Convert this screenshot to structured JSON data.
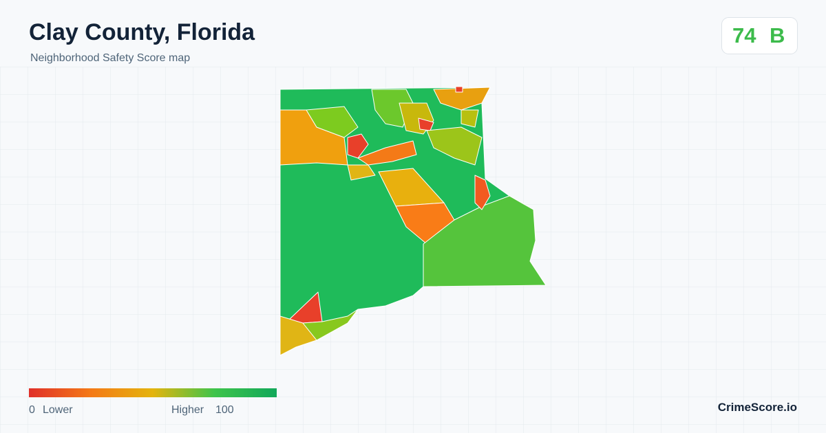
{
  "header": {
    "title": "Clay County, Florida",
    "subtitle": "Neighborhood Safety Score map"
  },
  "score": {
    "value": 74,
    "grade": "B"
  },
  "legend": {
    "min": 0,
    "min_label": "Lower",
    "max_label": "Higher",
    "max": 100
  },
  "brand": "CrimeScore.io"
}
